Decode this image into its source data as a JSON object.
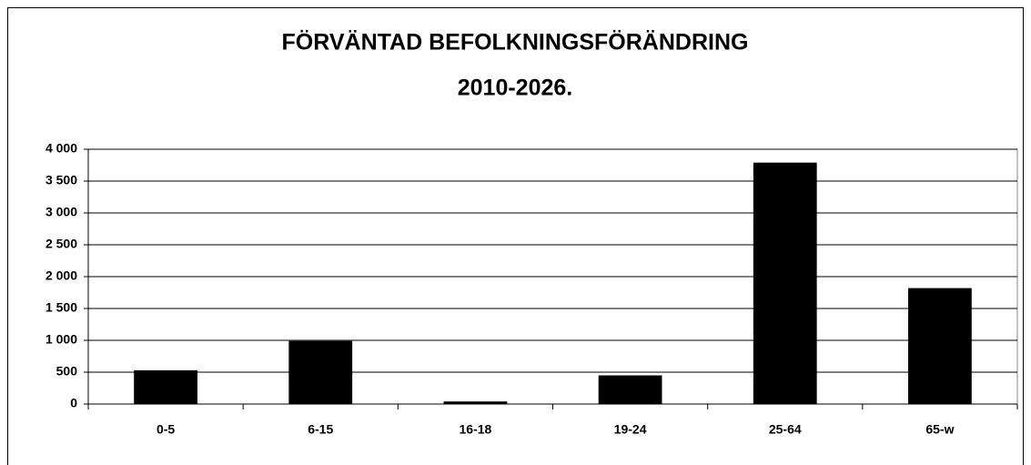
{
  "chart_data": {
    "type": "bar",
    "title": "FÖRVÄNTAD  BEFOLKNINGSFÖRÄNDRING",
    "subtitle": "2010-2026.",
    "categories": [
      "0-5",
      "6-15",
      "16-18",
      "19-24",
      "25-64",
      "65-w"
    ],
    "values": [
      530,
      990,
      40,
      450,
      3790,
      1820
    ],
    "color": "#000000",
    "ylim": [
      0,
      4000
    ],
    "yticks": [
      0,
      500,
      {
        "value": 1000,
        "label": "1 000"
      },
      {
        "value": 1500,
        "label": "1 500"
      },
      {
        "value": 2000,
        "label": "2 000"
      },
      {
        "value": 2500,
        "label": "2 500"
      },
      {
        "value": 3000,
        "label": "3 000"
      },
      {
        "value": 3500,
        "label": "3 500"
      },
      {
        "value": 4000,
        "label": "4 000"
      }
    ],
    "grid": true
  }
}
